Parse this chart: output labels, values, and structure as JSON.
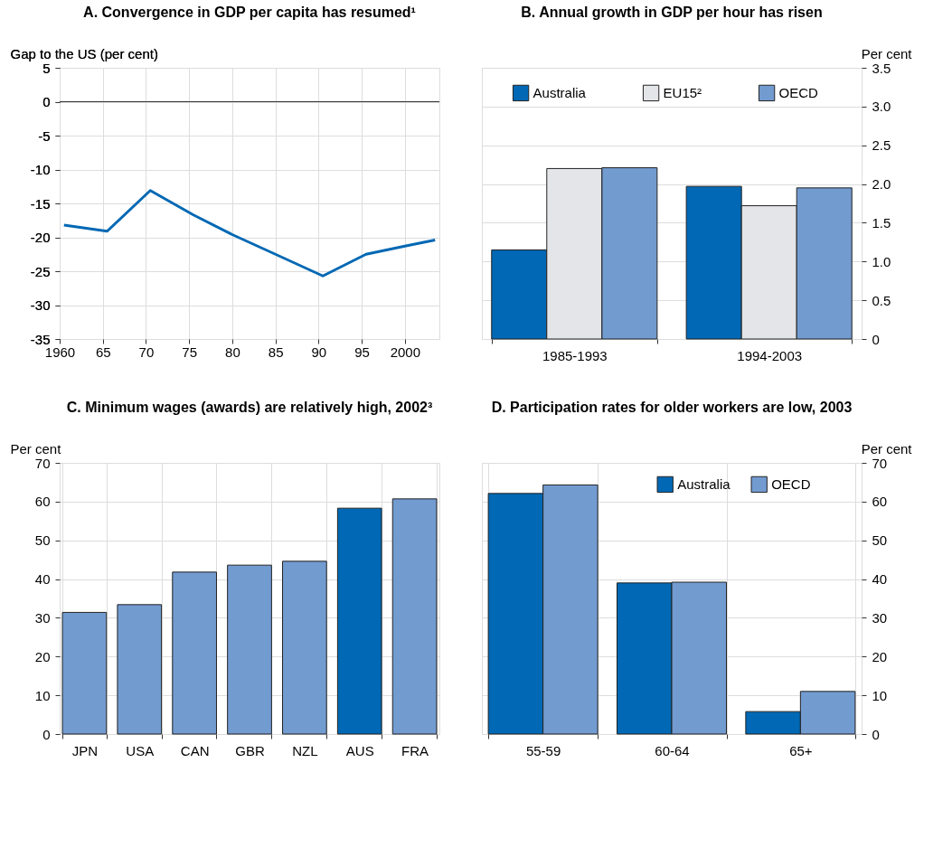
{
  "chart_data": [
    {
      "type": "line",
      "title": "A. Convergence in GDP per capita has resumed¹",
      "ylabel": "Gap to the US (per cent)",
      "x": [
        1960.5,
        1965.5,
        1970.5,
        1975.5,
        1980,
        1985,
        1990.5,
        1995.5,
        2000,
        2003.5
      ],
      "series": [
        {
          "color": "#0068b4",
          "values": [
            -18.2,
            -19.1,
            -13.1,
            -16.7,
            -19.6,
            -22.5,
            -25.7,
            -22.5,
            -21.3,
            -20.4
          ]
        }
      ],
      "xlim": [
        1960,
        2004
      ],
      "xticks": [
        1960,
        {
          "value": 1965,
          "label": "65"
        },
        {
          "value": 1970,
          "label": "70"
        },
        {
          "value": 1975,
          "label": "75"
        },
        {
          "value": 1980,
          "label": "80"
        },
        {
          "value": 1985,
          "label": "85"
        },
        {
          "value": 1990,
          "label": "90"
        },
        {
          "value": 1995,
          "label": "95"
        },
        2000
      ],
      "ylim": [
        -35,
        5
      ],
      "yticks": [
        -35,
        -30,
        -25,
        -20,
        -15,
        -10,
        -5,
        0,
        5
      ],
      "grid": true,
      "ref_lines": [
        {
          "axis": "y",
          "value": 0,
          "color": "#333333"
        }
      ]
    },
    {
      "type": "bar",
      "title": "B. Annual growth in GDP per hour has risen",
      "ylabel": "Per cent",
      "categories": [
        "1985-1993",
        "1994-2003"
      ],
      "series": [
        {
          "name": "Australia",
          "color": "#0068b4",
          "values": [
            1.15,
            1.97
          ]
        },
        {
          "name": "EU15²",
          "color": "#e4e5e8",
          "values": [
            2.2,
            1.72
          ]
        },
        {
          "name": "OECD",
          "color": "#729bd0",
          "values": [
            2.21,
            1.95
          ]
        }
      ],
      "ylim": [
        0,
        3.5
      ],
      "yticks": [
        0,
        0.5,
        {
          "value": 1,
          "label": "1.0"
        },
        1.5,
        {
          "value": 2,
          "label": "2.0"
        },
        2.5,
        {
          "value": 3,
          "label": "3.0"
        },
        3.5
      ],
      "grid": "y",
      "legend": "top"
    },
    {
      "type": "bar",
      "title": "C. Minimum wages (awards) are relatively high, 2002³",
      "ylabel": "Per cent",
      "categories": [
        "JPN",
        "USA",
        "CAN",
        "GBR",
        "NZL",
        "AUS",
        "FRA"
      ],
      "values": [
        31.4,
        33.4,
        41.8,
        43.6,
        44.6,
        58.3,
        60.7
      ],
      "colors": [
        "#729bd0",
        "#729bd0",
        "#729bd0",
        "#729bd0",
        "#729bd0",
        "#0068b4",
        "#729bd0"
      ],
      "ylim": [
        0,
        70
      ],
      "yticks": [
        0,
        10,
        20,
        30,
        40,
        50,
        60,
        70
      ],
      "grid": true
    },
    {
      "type": "bar",
      "title": "D. Participation rates for older workers are low, 2003",
      "ylabel": "Per cent",
      "categories": [
        "55-59",
        "60-64",
        "65+"
      ],
      "series": [
        {
          "name": "Australia",
          "color": "#0068b4",
          "values": [
            62.1,
            39.0,
            5.8
          ]
        },
        {
          "name": "OECD",
          "color": "#729bd0",
          "values": [
            64.3,
            39.2,
            11.0
          ]
        }
      ],
      "ylim": [
        0,
        70
      ],
      "yticks": [
        0,
        10,
        20,
        30,
        40,
        50,
        60,
        70
      ],
      "grid": true,
      "legend": "top right"
    }
  ]
}
